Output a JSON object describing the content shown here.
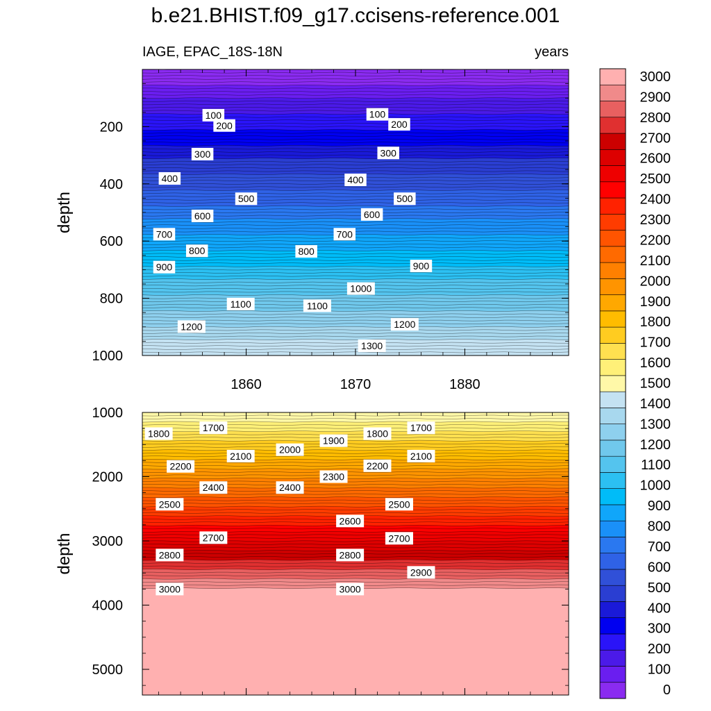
{
  "title": "b.e21.BHIST.f09_g17.ccisens-reference.001",
  "chart_data": [
    {
      "type": "contour",
      "left_label": "IAGE, EPAC_18S-18N",
      "right_label": "years",
      "ylabel": "depth",
      "xlim": [
        1850.5,
        1889.5
      ],
      "ylim": [
        0,
        1000
      ],
      "y_reversed": true,
      "x_ticks": [
        1860,
        1870,
        1880
      ],
      "y_ticks": [
        200,
        400,
        600,
        800,
        1000
      ],
      "levels": [
        0,
        1500
      ],
      "contour_labels": [
        {
          "x": 1857,
          "y": 160,
          "text": "100"
        },
        {
          "x": 1872,
          "y": 157,
          "text": "100"
        },
        {
          "x": 1858,
          "y": 196,
          "text": "200"
        },
        {
          "x": 1874,
          "y": 192,
          "text": "200"
        },
        {
          "x": 1856,
          "y": 296,
          "text": "300"
        },
        {
          "x": 1873,
          "y": 292,
          "text": "300"
        },
        {
          "x": 1853,
          "y": 381,
          "text": "400"
        },
        {
          "x": 1870,
          "y": 386,
          "text": "400"
        },
        {
          "x": 1860,
          "y": 452,
          "text": "500"
        },
        {
          "x": 1874.5,
          "y": 452,
          "text": "500"
        },
        {
          "x": 1856,
          "y": 512,
          "text": "600"
        },
        {
          "x": 1871.5,
          "y": 507,
          "text": "600"
        },
        {
          "x": 1852.5,
          "y": 576,
          "text": "700"
        },
        {
          "x": 1869,
          "y": 576,
          "text": "700"
        },
        {
          "x": 1855.5,
          "y": 634,
          "text": "800"
        },
        {
          "x": 1865.5,
          "y": 636,
          "text": "800"
        },
        {
          "x": 1852.5,
          "y": 691,
          "text": "900"
        },
        {
          "x": 1876,
          "y": 687,
          "text": "900"
        },
        {
          "x": 1870.5,
          "y": 766,
          "text": "1000"
        },
        {
          "x": 1859.5,
          "y": 820,
          "text": "1100"
        },
        {
          "x": 1866.5,
          "y": 826,
          "text": "1100"
        },
        {
          "x": 1855,
          "y": 899,
          "text": "1200"
        },
        {
          "x": 1874.5,
          "y": 891,
          "text": "1200"
        },
        {
          "x": 1871.5,
          "y": 966,
          "text": "1300"
        }
      ]
    },
    {
      "type": "contour",
      "ylabel": "depth",
      "xlim": [
        1850.5,
        1889.5
      ],
      "ylim": [
        1000,
        5400
      ],
      "y_reversed": true,
      "x_ticks": [
        1860,
        1870,
        1880
      ],
      "y_ticks": [
        1000,
        2000,
        3000,
        4000,
        5000
      ],
      "levels": [
        1500,
        3000
      ],
      "contour_labels": [
        {
          "x": 1852,
          "y": 1330,
          "text": "1800"
        },
        {
          "x": 1857,
          "y": 1240,
          "text": "1700"
        },
        {
          "x": 1859.5,
          "y": 1680,
          "text": "2100"
        },
        {
          "x": 1864,
          "y": 1580,
          "text": "2000"
        },
        {
          "x": 1868,
          "y": 1440,
          "text": "1900"
        },
        {
          "x": 1872,
          "y": 1330,
          "text": "1800"
        },
        {
          "x": 1876,
          "y": 1240,
          "text": "1700"
        },
        {
          "x": 1876,
          "y": 1680,
          "text": "2100"
        },
        {
          "x": 1854,
          "y": 1840,
          "text": "2200"
        },
        {
          "x": 1872,
          "y": 1830,
          "text": "2200"
        },
        {
          "x": 1868,
          "y": 2000,
          "text": "2300"
        },
        {
          "x": 1857,
          "y": 2170,
          "text": "2400"
        },
        {
          "x": 1864,
          "y": 2170,
          "text": "2400"
        },
        {
          "x": 1853,
          "y": 2430,
          "text": "2500"
        },
        {
          "x": 1874,
          "y": 2430,
          "text": "2500"
        },
        {
          "x": 1869.5,
          "y": 2690,
          "text": "2600"
        },
        {
          "x": 1857,
          "y": 2950,
          "text": "2700"
        },
        {
          "x": 1874,
          "y": 2960,
          "text": "2700"
        },
        {
          "x": 1853,
          "y": 3220,
          "text": "2800"
        },
        {
          "x": 1869.5,
          "y": 3220,
          "text": "2800"
        },
        {
          "x": 1876,
          "y": 3490,
          "text": "2900"
        },
        {
          "x": 1853,
          "y": 3750,
          "text": "3000"
        },
        {
          "x": 1869.5,
          "y": 3750,
          "text": "3000"
        }
      ]
    }
  ],
  "colorbar": {
    "labels": [
      "0",
      "100",
      "200",
      "300",
      "400",
      "500",
      "600",
      "700",
      "800",
      "900",
      "1000",
      "1100",
      "1200",
      "1300",
      "1400",
      "1500",
      "1600",
      "1700",
      "1800",
      "1900",
      "2000",
      "2100",
      "2200",
      "2300",
      "2400",
      "2500",
      "2600",
      "2700",
      "2800",
      "2900",
      "3000"
    ],
    "colors": [
      "#8a2bf0",
      "#6a1ef0",
      "#4b1ae8",
      "#2a14f8",
      "#0000f0",
      "#1a1ad8",
      "#2a3ed2",
      "#3050d8",
      "#2f62e6",
      "#2a78f0",
      "#1a90f8",
      "#10a6fa",
      "#00bcf8",
      "#2cc0f2",
      "#54c4ee",
      "#70c8ec",
      "#8ed0ee",
      "#a8d8ee",
      "#c4e2f2",
      "#fff8a8",
      "#fff078",
      "#ffe050",
      "#ffcc20",
      "#ffbc00",
      "#ffa800",
      "#ff9400",
      "#ff8000",
      "#ff6a00",
      "#ff5400",
      "#ff3c00",
      "#ff2200",
      "#ff0000",
      "#ee0000",
      "#dd0000",
      "#cc0000",
      "#e03030",
      "#e86060",
      "#f08a8a",
      "#ffb0b0"
    ]
  }
}
